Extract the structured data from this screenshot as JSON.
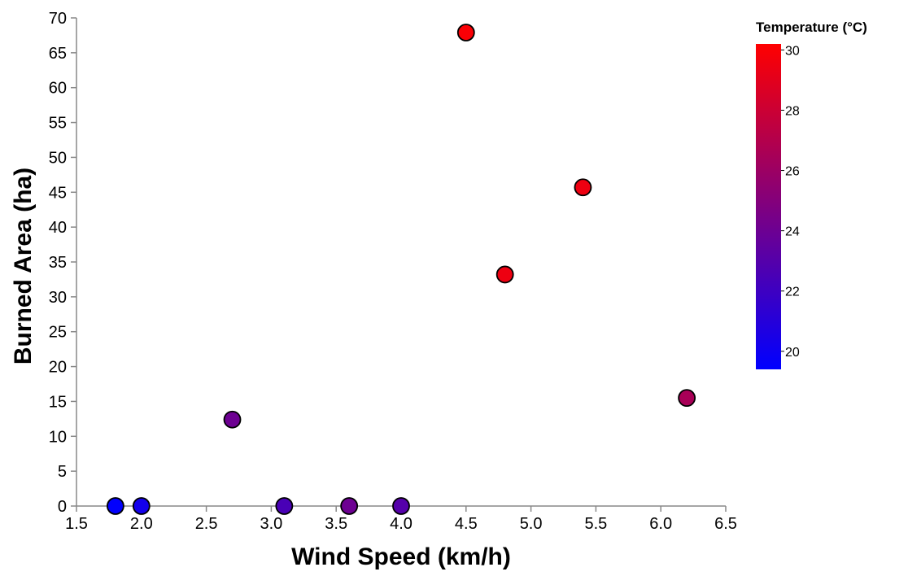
{
  "chart_data": {
    "type": "scatter",
    "title": "",
    "xlabel": "Wind Speed (km/h)",
    "ylabel": "Burned Area (ha)",
    "xlim": [
      1.5,
      6.5
    ],
    "ylim": [
      0,
      70
    ],
    "xticks": [
      "1.5",
      "2.0",
      "2.5",
      "3.0",
      "3.5",
      "4.0",
      "4.5",
      "5.0",
      "5.5",
      "6.0",
      "6.5"
    ],
    "yticks": [
      "0",
      "5",
      "10",
      "15",
      "20",
      "25",
      "30",
      "35",
      "40",
      "45",
      "50",
      "55",
      "60",
      "65",
      "70"
    ],
    "grid": false,
    "color_encoding": {
      "title": "Temperature (°C)",
      "domain": [
        19.4,
        30.2
      ],
      "range_colors": [
        "#0000ff",
        "#ff0000"
      ],
      "ticks": [
        "20",
        "22",
        "24",
        "26",
        "28",
        "30"
      ],
      "placement": "top-right"
    },
    "points": [
      {
        "x": 1.8,
        "y": 0.0,
        "temp": 19.5
      },
      {
        "x": 2.0,
        "y": 0.0,
        "temp": 20.2
      },
      {
        "x": 2.7,
        "y": 12.4,
        "temp": 24.0
      },
      {
        "x": 3.1,
        "y": 0.0,
        "temp": 22.5
      },
      {
        "x": 3.6,
        "y": 0.0,
        "temp": 24.0
      },
      {
        "x": 4.0,
        "y": 0.0,
        "temp": 23.0
      },
      {
        "x": 4.5,
        "y": 67.9,
        "temp": 30.0
      },
      {
        "x": 4.8,
        "y": 33.2,
        "temp": 29.5
      },
      {
        "x": 5.4,
        "y": 45.7,
        "temp": 29.5
      },
      {
        "x": 6.2,
        "y": 15.5,
        "temp": 26.5
      }
    ]
  }
}
